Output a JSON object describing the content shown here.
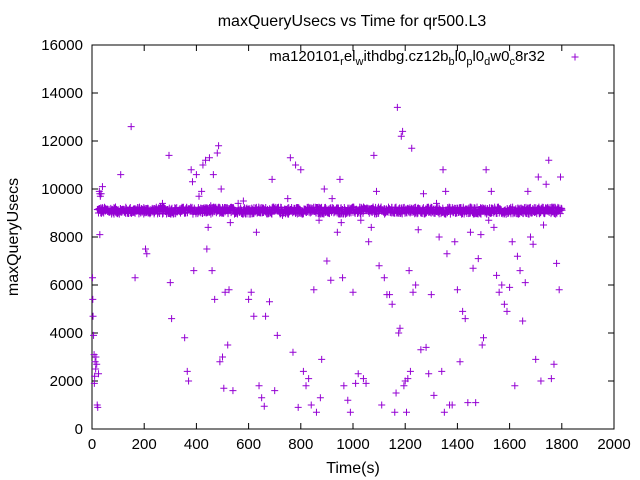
{
  "chart_data": {
    "type": "scatter",
    "title": "maxQueryUsecs vs Time for qr500.L3",
    "xlabel": "Time(s)",
    "ylabel": "maxQueryUsecs",
    "xlim": [
      0,
      2000
    ],
    "ylim": [
      0,
      16000
    ],
    "x_ticks": [
      "0",
      "200",
      "400",
      "600",
      "800",
      "1000",
      "1200",
      "1400",
      "1600",
      "1800",
      "2000"
    ],
    "y_ticks": [
      "0",
      "2000",
      "4000",
      "6000",
      "8000",
      "10000",
      "12000",
      "14000",
      "16000"
    ],
    "grid": false,
    "legend_position": "top-right",
    "marker": "+",
    "color": "#9400d3",
    "series": [
      {
        "name": "ma120101_rel_withdbg.cz12b_bl0_pl0_dw0_c8r32",
        "band": {
          "x_start": 20,
          "x_end": 1800,
          "y_center": 9100,
          "y_spread": 150
        },
        "outliers": [
          [
            2,
            6300
          ],
          [
            3,
            5400
          ],
          [
            4,
            4700
          ],
          [
            6,
            3900
          ],
          [
            8,
            3100
          ],
          [
            9,
            1900
          ],
          [
            10,
            2200
          ],
          [
            12,
            2800
          ],
          [
            14,
            2500
          ],
          [
            15,
            3000
          ],
          [
            18,
            2700
          ],
          [
            20,
            1000
          ],
          [
            22,
            900
          ],
          [
            25,
            2300
          ],
          [
            28,
            9900
          ],
          [
            30,
            9800
          ],
          [
            32,
            9700
          ],
          [
            35,
            9800
          ],
          [
            40,
            10100
          ],
          [
            30,
            8100
          ],
          [
            110,
            10600
          ],
          [
            150,
            12600
          ],
          [
            165,
            6300
          ],
          [
            205,
            7500
          ],
          [
            210,
            7300
          ],
          [
            270,
            9400
          ],
          [
            295,
            11400
          ],
          [
            300,
            6100
          ],
          [
            305,
            4600
          ],
          [
            355,
            3800
          ],
          [
            365,
            2400
          ],
          [
            370,
            2000
          ],
          [
            380,
            10800
          ],
          [
            385,
            10300
          ],
          [
            390,
            6600
          ],
          [
            400,
            10600
          ],
          [
            410,
            9700
          ],
          [
            420,
            9900
          ],
          [
            425,
            11000
          ],
          [
            435,
            11200
          ],
          [
            440,
            7500
          ],
          [
            445,
            8400
          ],
          [
            450,
            11300
          ],
          [
            455,
            9300
          ],
          [
            460,
            6600
          ],
          [
            465,
            10600
          ],
          [
            470,
            5400
          ],
          [
            480,
            11500
          ],
          [
            485,
            11800
          ],
          [
            490,
            2800
          ],
          [
            495,
            10000
          ],
          [
            500,
            3000
          ],
          [
            505,
            1700
          ],
          [
            510,
            5700
          ],
          [
            520,
            3500
          ],
          [
            525,
            5800
          ],
          [
            530,
            8600
          ],
          [
            540,
            1600
          ],
          [
            560,
            9400
          ],
          [
            580,
            9500
          ],
          [
            600,
            5400
          ],
          [
            610,
            5700
          ],
          [
            620,
            4700
          ],
          [
            630,
            8200
          ],
          [
            640,
            1800
          ],
          [
            650,
            1300
          ],
          [
            660,
            950
          ],
          [
            665,
            4700
          ],
          [
            680,
            5300
          ],
          [
            690,
            10400
          ],
          [
            700,
            1600
          ],
          [
            710,
            3900
          ],
          [
            730,
            8900
          ],
          [
            750,
            9600
          ],
          [
            760,
            11300
          ],
          [
            770,
            3200
          ],
          [
            780,
            11000
          ],
          [
            790,
            900
          ],
          [
            800,
            10800
          ],
          [
            810,
            2400
          ],
          [
            820,
            1800
          ],
          [
            830,
            2100
          ],
          [
            840,
            1000
          ],
          [
            850,
            5800
          ],
          [
            860,
            700
          ],
          [
            870,
            8700
          ],
          [
            875,
            1300
          ],
          [
            880,
            2900
          ],
          [
            890,
            10000
          ],
          [
            900,
            7000
          ],
          [
            915,
            6200
          ],
          [
            920,
            9600
          ],
          [
            940,
            8200
          ],
          [
            950,
            10400
          ],
          [
            955,
            8600
          ],
          [
            960,
            6300
          ],
          [
            965,
            1800
          ],
          [
            980,
            1200
          ],
          [
            990,
            700
          ],
          [
            1000,
            5700
          ],
          [
            1010,
            1900
          ],
          [
            1020,
            2300
          ],
          [
            1030,
            8700
          ],
          [
            1040,
            2100
          ],
          [
            1050,
            1900
          ],
          [
            1060,
            7800
          ],
          [
            1070,
            8400
          ],
          [
            1080,
            11400
          ],
          [
            1090,
            9900
          ],
          [
            1100,
            6800
          ],
          [
            1110,
            1000
          ],
          [
            1120,
            6300
          ],
          [
            1130,
            5600
          ],
          [
            1140,
            5600
          ],
          [
            1150,
            5200
          ],
          [
            1160,
            700
          ],
          [
            1165,
            1500
          ],
          [
            1170,
            13400
          ],
          [
            1175,
            4000
          ],
          [
            1180,
            4200
          ],
          [
            1185,
            12200
          ],
          [
            1190,
            12400
          ],
          [
            1195,
            1800
          ],
          [
            1200,
            2000
          ],
          [
            1205,
            700
          ],
          [
            1210,
            2100
          ],
          [
            1215,
            6600
          ],
          [
            1220,
            2400
          ],
          [
            1225,
            11700
          ],
          [
            1230,
            5700
          ],
          [
            1240,
            6000
          ],
          [
            1250,
            8300
          ],
          [
            1260,
            3300
          ],
          [
            1270,
            9800
          ],
          [
            1280,
            3400
          ],
          [
            1290,
            2300
          ],
          [
            1300,
            5600
          ],
          [
            1310,
            1400
          ],
          [
            1320,
            9400
          ],
          [
            1330,
            8000
          ],
          [
            1340,
            2400
          ],
          [
            1345,
            10800
          ],
          [
            1350,
            700
          ],
          [
            1355,
            9900
          ],
          [
            1360,
            7300
          ],
          [
            1370,
            1000
          ],
          [
            1380,
            1000
          ],
          [
            1390,
            7800
          ],
          [
            1400,
            5800
          ],
          [
            1410,
            2800
          ],
          [
            1420,
            4900
          ],
          [
            1430,
            4600
          ],
          [
            1440,
            1100
          ],
          [
            1450,
            8200
          ],
          [
            1460,
            6700
          ],
          [
            1470,
            1100
          ],
          [
            1480,
            7100
          ],
          [
            1490,
            8100
          ],
          [
            1495,
            3500
          ],
          [
            1500,
            3800
          ],
          [
            1510,
            10800
          ],
          [
            1520,
            8700
          ],
          [
            1530,
            9900
          ],
          [
            1540,
            8400
          ],
          [
            1550,
            6400
          ],
          [
            1560,
            5700
          ],
          [
            1570,
            6000
          ],
          [
            1580,
            5200
          ],
          [
            1590,
            4900
          ],
          [
            1600,
            5900
          ],
          [
            1610,
            7800
          ],
          [
            1620,
            1800
          ],
          [
            1630,
            7200
          ],
          [
            1640,
            6600
          ],
          [
            1650,
            4500
          ],
          [
            1660,
            6100
          ],
          [
            1670,
            9900
          ],
          [
            1680,
            8000
          ],
          [
            1690,
            7700
          ],
          [
            1700,
            2900
          ],
          [
            1710,
            10500
          ],
          [
            1720,
            2000
          ],
          [
            1730,
            8500
          ],
          [
            1740,
            10200
          ],
          [
            1750,
            11200
          ],
          [
            1760,
            2100
          ],
          [
            1770,
            2700
          ],
          [
            1780,
            6900
          ],
          [
            1790,
            5800
          ],
          [
            1795,
            10500
          ]
        ]
      }
    ]
  }
}
